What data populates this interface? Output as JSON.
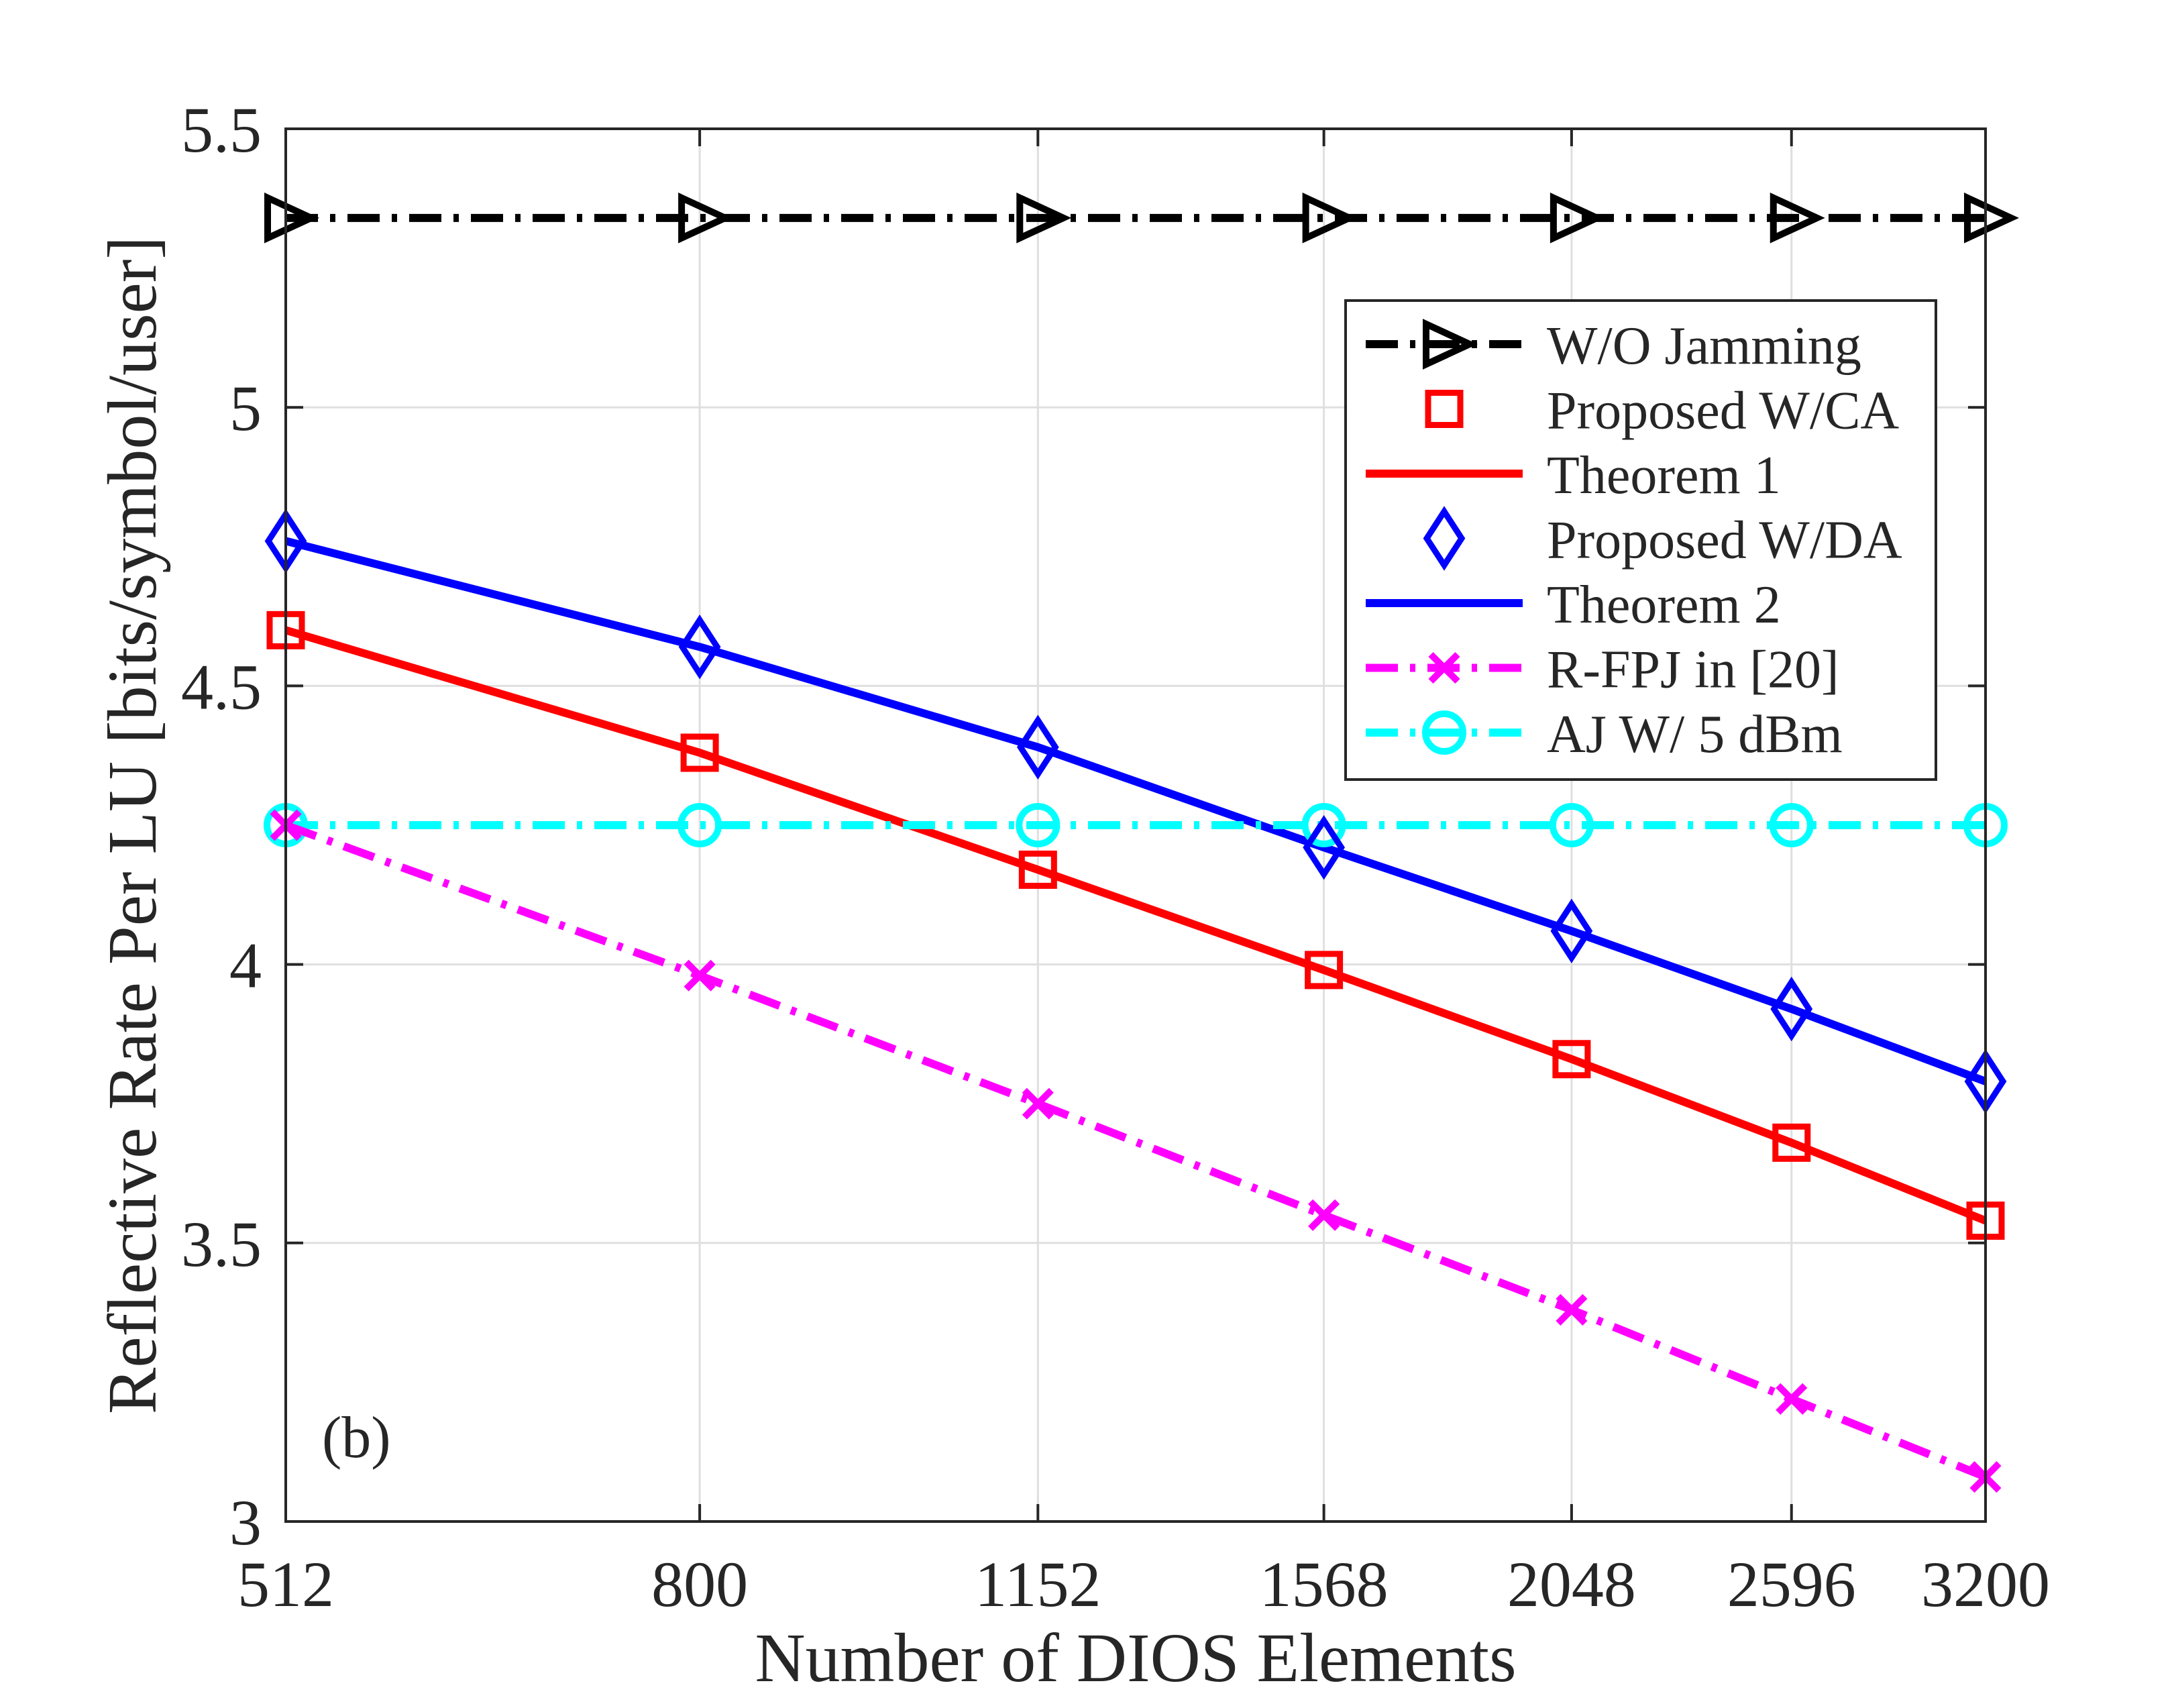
{
  "chart_data": {
    "type": "line",
    "xlabel": "Number of DIOS Elements",
    "ylabel": "Reflective Rate Per LU [bits/symbol/user]",
    "annotation": "(b)",
    "x_scale": "log",
    "x": [
      512,
      800,
      1152,
      1568,
      2048,
      2596,
      3200
    ],
    "xtick_labels": [
      "512",
      "800",
      "1152",
      "1568",
      "2048",
      "2596",
      "3200"
    ],
    "ylim": [
      3,
      5.5
    ],
    "yticks": [
      3,
      3.5,
      4,
      4.5,
      5,
      5.5
    ],
    "ytick_labels": [
      "3",
      "3.5",
      "4",
      "4.5",
      "5",
      "5.5"
    ],
    "grid": true,
    "legend_position": "top-right",
    "series": [
      {
        "name": "W/O Jamming",
        "color": "#000000",
        "line": "dashdot",
        "marker": "triangle-right",
        "values": [
          5.34,
          5.34,
          5.34,
          5.34,
          5.34,
          5.34,
          5.34
        ]
      },
      {
        "name": "Proposed W/CA",
        "color": "#ff0000",
        "line": "none",
        "marker": "square",
        "values": [
          4.6,
          4.38,
          4.17,
          3.99,
          3.83,
          3.68,
          3.54
        ]
      },
      {
        "name": "Theorem 1",
        "color": "#ff0000",
        "line": "solid",
        "marker": "none",
        "values": [
          4.6,
          4.38,
          4.17,
          3.99,
          3.83,
          3.68,
          3.54
        ]
      },
      {
        "name": "Proposed W/DA",
        "color": "#0000ff",
        "line": "none",
        "marker": "diamond",
        "values": [
          4.76,
          4.57,
          4.39,
          4.21,
          4.06,
          3.92,
          3.79
        ]
      },
      {
        "name": "Theorem 2",
        "color": "#0000ff",
        "line": "solid",
        "marker": "none",
        "values": [
          4.76,
          4.57,
          4.39,
          4.21,
          4.06,
          3.92,
          3.79
        ]
      },
      {
        "name": "R-FPJ in [20]",
        "color": "#ff00ff",
        "line": "dashdot",
        "marker": "x",
        "values": [
          4.25,
          3.98,
          3.75,
          3.55,
          3.38,
          3.22,
          3.08
        ]
      },
      {
        "name": "AJ W/ 5 dBm",
        "color": "#00ffff",
        "line": "dashdot",
        "marker": "circle",
        "values": [
          4.25,
          4.25,
          4.25,
          4.25,
          4.25,
          4.25,
          4.25
        ]
      }
    ]
  }
}
